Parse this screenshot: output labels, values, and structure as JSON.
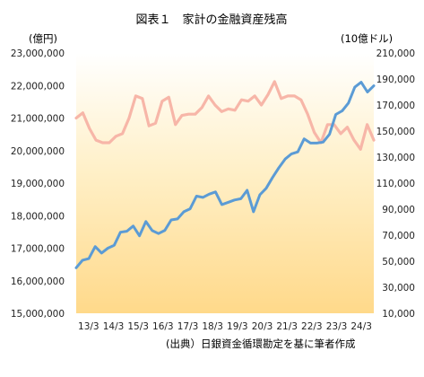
{
  "chart_data": {
    "type": "line",
    "title": "図表１　家計の金融資産残高",
    "left_axis_unit": "(億円)",
    "right_axis_unit": "(10億ドル)",
    "source": "(出典）日銀資金循環勘定を基に筆者作成",
    "grid": false,
    "background": "gradient",
    "x_tick_labels": [
      "13/3",
      "14/3",
      "15/3",
      "16/3",
      "17/3",
      "18/3",
      "19/3",
      "20/3",
      "21/3",
      "22/3",
      "23/3",
      "24/3"
    ],
    "left_axis": {
      "min": 15000000,
      "max": 23000000,
      "step": 1000000,
      "tick_labels": [
        "15,000,000",
        "16,000,000",
        "17,000,000",
        "18,000,000",
        "19,000,000",
        "20,000,000",
        "21,000,000",
        "22,000,000",
        "23,000,000"
      ]
    },
    "right_axis": {
      "min": 10000,
      "max": 210000,
      "step": 20000,
      "tick_labels": [
        "10,000",
        "30,000",
        "50,000",
        "70,000",
        "90,000",
        "110,000",
        "130,000",
        "150,000",
        "170,000",
        "190,000",
        "210,000"
      ]
    },
    "series": [
      {
        "axis": "left",
        "color": "#5b9bd5",
        "values": [
          16400000,
          16630000,
          16680000,
          17050000,
          16850000,
          17000000,
          17090000,
          17490000,
          17520000,
          17680000,
          17380000,
          17820000,
          17540000,
          17450000,
          17550000,
          17870000,
          17900000,
          18120000,
          18210000,
          18600000,
          18560000,
          18660000,
          18730000,
          18340000,
          18410000,
          18480000,
          18520000,
          18780000,
          18120000,
          18640000,
          18840000,
          19170000,
          19470000,
          19740000,
          19900000,
          19960000,
          20360000,
          20230000,
          20230000,
          20260000,
          20500000,
          21110000,
          21220000,
          21460000,
          21950000,
          22100000,
          21800000,
          21990000
        ]
      },
      {
        "axis": "right",
        "color": "#f7b6a8",
        "values": [
          160000,
          164000,
          152000,
          143000,
          141000,
          141000,
          146000,
          148000,
          160000,
          177000,
          175000,
          154000,
          156000,
          173000,
          176000,
          155000,
          162000,
          163000,
          163000,
          168000,
          177000,
          170000,
          165000,
          167000,
          166000,
          174000,
          173000,
          177000,
          170000,
          178000,
          188000,
          175000,
          177000,
          177000,
          174000,
          163000,
          149000,
          141000,
          155000,
          155000,
          148000,
          153000,
          143000,
          136000,
          155000,
          143000
        ]
      }
    ]
  }
}
